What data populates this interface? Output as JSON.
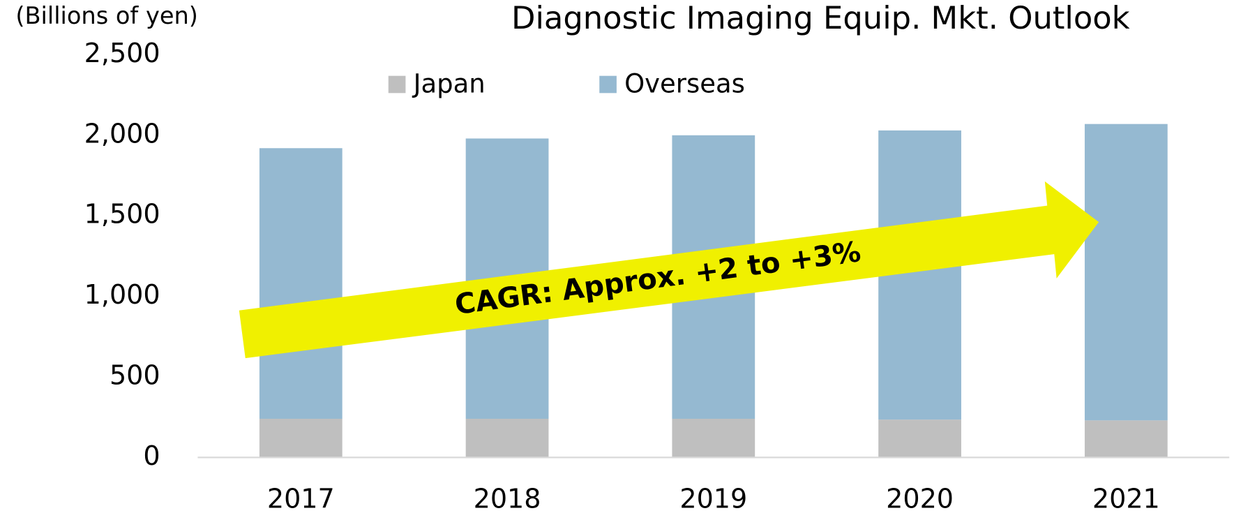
{
  "chart_data": {
    "type": "stacked_bar",
    "title": "Diagnostic Imaging Equip. Mkt. Outlook",
    "y_label": "(Billions of yen)",
    "annotation": "CAGR: Approx. +2 to +3%",
    "categories": [
      "2017",
      "2018",
      "2019",
      "2020",
      "2021"
    ],
    "series": [
      {
        "name": "Japan",
        "color": "#bfbfbf",
        "values": [
          240,
          240,
          240,
          235,
          230
        ]
      },
      {
        "name": "Overseas",
        "color": "#95b9d1",
        "values": [
          1680,
          1740,
          1760,
          1795,
          1840
        ]
      }
    ],
    "ylim": [
      0,
      2500
    ],
    "yticks": [
      0,
      500,
      {
        "value": 1000,
        "label": "1,000"
      },
      {
        "value": 1500,
        "label": "1,500"
      },
      {
        "value": 2000,
        "label": "2,000"
      },
      {
        "value": 2500,
        "label": "2,500"
      }
    ],
    "grid": false,
    "legend": "top"
  }
}
